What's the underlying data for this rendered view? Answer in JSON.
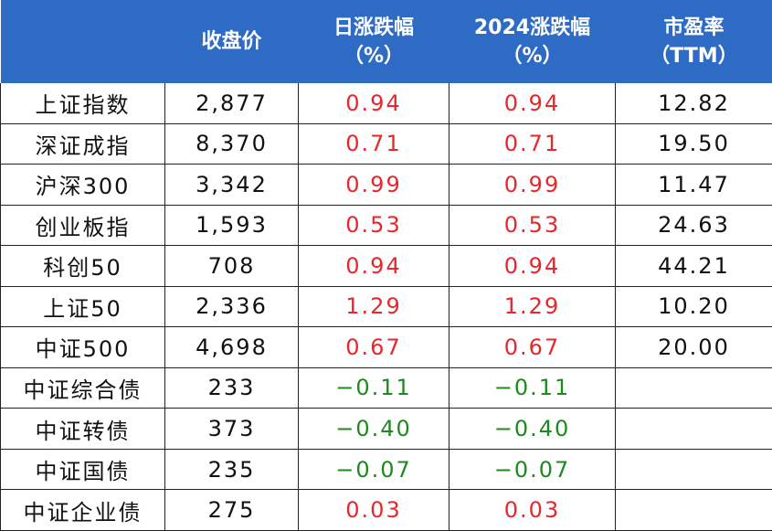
{
  "header": {
    "col_name": "",
    "col_close": "收盘价",
    "col_day_line1": "日涨跌幅",
    "col_day_line2": "（%）",
    "col_ytd_line1": "2024涨跌幅",
    "col_ytd_line2": "（%）",
    "col_pe_line1": "市盈率",
    "col_pe_line2": "（TTM）"
  },
  "colors": {
    "header_bg": "#2d6bc4",
    "up": "#e8262b",
    "down": "#1e8a1e",
    "text": "#111111"
  },
  "rows": [
    {
      "name": "上证指数",
      "close": "2,877",
      "day": "0.94",
      "ytd": "0.94",
      "pe": "12.82",
      "dir": "up"
    },
    {
      "name": "深证成指",
      "close": "8,370",
      "day": "0.71",
      "ytd": "0.71",
      "pe": "19.50",
      "dir": "up"
    },
    {
      "name": "沪深300",
      "close": "3,342",
      "day": "0.99",
      "ytd": "0.99",
      "pe": "11.47",
      "dir": "up"
    },
    {
      "name": "创业板指",
      "close": "1,593",
      "day": "0.53",
      "ytd": "0.53",
      "pe": "24.63",
      "dir": "up"
    },
    {
      "name": "科创50",
      "close": "708",
      "day": "0.94",
      "ytd": "0.94",
      "pe": "44.21",
      "dir": "up"
    },
    {
      "name": "上证50",
      "close": "2,336",
      "day": "1.29",
      "ytd": "1.29",
      "pe": "10.20",
      "dir": "up"
    },
    {
      "name": "中证500",
      "close": "4,698",
      "day": "0.67",
      "ytd": "0.67",
      "pe": "20.00",
      "dir": "up"
    },
    {
      "name": "中证综合债",
      "close": "233",
      "day": "−0.11",
      "ytd": "−0.11",
      "pe": "",
      "dir": "down"
    },
    {
      "name": "中证转债",
      "close": "373",
      "day": "−0.40",
      "ytd": "−0.40",
      "pe": "",
      "dir": "down"
    },
    {
      "name": "中证国债",
      "close": "235",
      "day": "−0.07",
      "ytd": "−0.07",
      "pe": "",
      "dir": "down"
    },
    {
      "name": "中证企业债",
      "close": "275",
      "day": "0.03",
      "ytd": "0.03",
      "pe": "",
      "dir": "up"
    }
  ]
}
